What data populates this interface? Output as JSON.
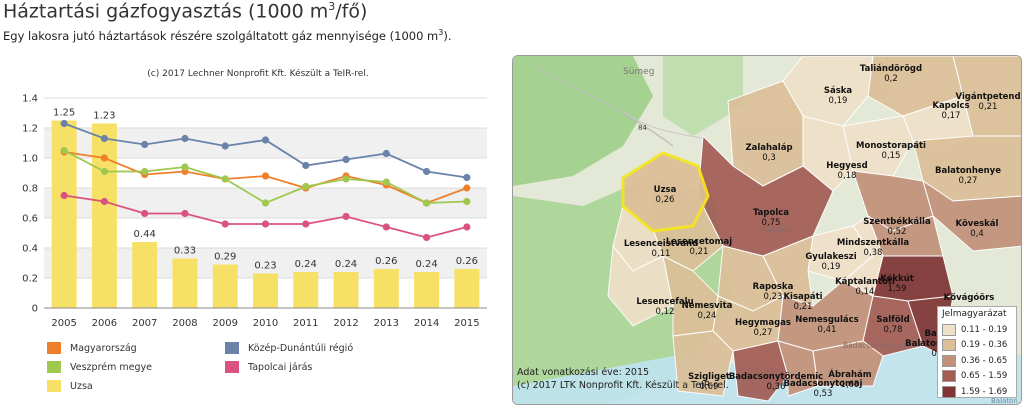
{
  "header": {
    "title_main": "Háztartási gázfogyasztás (1000 m",
    "title_sup": "3",
    "title_tail": "/fő)",
    "subtitle_main": "Egy lakosra jutó háztartások részére szolgáltatott gáz mennyisége (1000 m",
    "subtitle_sup": "3",
    "subtitle_tail": ")."
  },
  "chart_credit": "(c) 2017 Lechner Nonprofit Kft. Készült a TeIR-rel.",
  "chart_data": {
    "type": "bar",
    "categories": [
      "2005",
      "2006",
      "2007",
      "2008",
      "2009",
      "2010",
      "2011",
      "2012",
      "2013",
      "2014",
      "2015"
    ],
    "ylim": [
      0,
      1.4
    ],
    "yticks": [
      "0",
      "0.2",
      "0.4",
      "0.6",
      "0.8",
      "1.0",
      "1.2",
      "1.4"
    ],
    "bar_series": {
      "name": "Uzsa",
      "color": "#f7e066",
      "values": [
        1.25,
        1.23,
        0.44,
        0.33,
        0.29,
        0.23,
        0.24,
        0.24,
        0.26,
        0.24,
        0.26
      ],
      "labels": [
        "1.25",
        "1.23",
        "0.44",
        "0.33",
        "0.29",
        "0.23",
        "0.24",
        "0.24",
        "0.26",
        "0.24",
        "0.26"
      ]
    },
    "line_series": [
      {
        "name": "Magyarország",
        "color": "#f07f2b",
        "values": [
          1.04,
          1.0,
          0.89,
          0.91,
          0.86,
          0.88,
          0.8,
          0.88,
          0.82,
          0.7,
          0.8
        ]
      },
      {
        "name": "Közép-Dunántúli régió",
        "color": "#6a83a8",
        "values": [
          1.23,
          1.13,
          1.09,
          1.13,
          1.08,
          1.12,
          0.95,
          0.99,
          1.03,
          0.91,
          0.87
        ]
      },
      {
        "name": "Veszprém megye",
        "color": "#9ec84e",
        "values": [
          1.05,
          0.91,
          0.91,
          0.94,
          0.86,
          0.7,
          0.81,
          0.86,
          0.84,
          0.7,
          0.71
        ]
      },
      {
        "name": "Tapolcai járás",
        "color": "#d9537e",
        "values": [
          0.75,
          0.71,
          0.63,
          0.63,
          0.56,
          0.56,
          0.56,
          0.61,
          0.54,
          0.47,
          0.54
        ]
      }
    ]
  },
  "legend": [
    {
      "label": "Magyarország",
      "color": "#f07f2b"
    },
    {
      "label": "Közép-Dunántúli régió",
      "color": "#6a83a8"
    },
    {
      "label": "Veszprém megye",
      "color": "#9ec84e"
    },
    {
      "label": "Tapolcai járás",
      "color": "#d9537e"
    },
    {
      "label": "Uzsa",
      "color": "#f7e066"
    }
  ],
  "map": {
    "background_labels": [
      "Sümeg",
      "84",
      "Tapolca",
      "Badacsonytomaj",
      "Balaton"
    ],
    "places": [
      {
        "name": "Taliándörögd",
        "value": "0,2"
      },
      {
        "name": "Sáska",
        "value": "0,19"
      },
      {
        "name": "Vigántpetend",
        "value": "0,21"
      },
      {
        "name": "Kapolcs",
        "value": "0,17"
      },
      {
        "name": "Zalahaláp",
        "value": "0,3"
      },
      {
        "name": "Monostorapáti",
        "value": "0,15"
      },
      {
        "name": "Hegyesd",
        "value": "0,18"
      },
      {
        "name": "Balatonhenye",
        "value": "0,27"
      },
      {
        "name": "Uzsa",
        "value": "0,26"
      },
      {
        "name": "Tapolca",
        "value": "0,75"
      },
      {
        "name": "Szentbékkálla",
        "value": "0,52"
      },
      {
        "name": "Köveskál",
        "value": "0,4"
      },
      {
        "name": "Mindszentkálla",
        "value": "0,38"
      },
      {
        "name": "Lesenceistvánd",
        "value": "0,11"
      },
      {
        "name": "Lesencetomaj",
        "value": "0,21"
      },
      {
        "name": "Gyulakeszi",
        "value": "0,19"
      },
      {
        "name": "Káptalantóti",
        "value": "0,14"
      },
      {
        "name": "Kékkút",
        "value": "1,59"
      },
      {
        "name": "Raposka",
        "value": "0,23"
      },
      {
        "name": "Kisapáti",
        "value": "0,21"
      },
      {
        "name": "Kővágóörs",
        "value": ""
      },
      {
        "name": "Lesencefalu",
        "value": "0,12"
      },
      {
        "name": "Nemesvita",
        "value": "0,24"
      },
      {
        "name": "Hegymagas",
        "value": "0,27"
      },
      {
        "name": "Nemesgulács",
        "value": "0,41"
      },
      {
        "name": "Salföld",
        "value": "0,78"
      },
      {
        "name": "Balatonederics",
        "value": "0,23"
      },
      {
        "name": "Szigliget",
        "value": "0,69"
      },
      {
        "name": "Badacsonytördemic",
        "value": "0,36"
      },
      {
        "name": "Badacsonytomaj",
        "value": "0,53"
      },
      {
        "name": "Ábrahám",
        "value": "1,65"
      },
      {
        "name": "Bala",
        "value": ""
      }
    ],
    "footer_year": "Adat vonatkozási éve: 2015",
    "footer_credit": "(c) 2017 LTK Nonprofit Kft. Készült a TeIR-rel.",
    "legend_title": "Jelmagyarázat",
    "legend_items": [
      {
        "label": "0.11 - 0.19",
        "color": "#efe0c8"
      },
      {
        "label": "0.19 - 0.36",
        "color": "#dcbf98"
      },
      {
        "label": "0.36 - 0.65",
        "color": "#c2917a"
      },
      {
        "label": "0.65 - 1.59",
        "color": "#a25d55"
      },
      {
        "label": "1.59 - 1.69",
        "color": "#7f3535"
      }
    ]
  }
}
